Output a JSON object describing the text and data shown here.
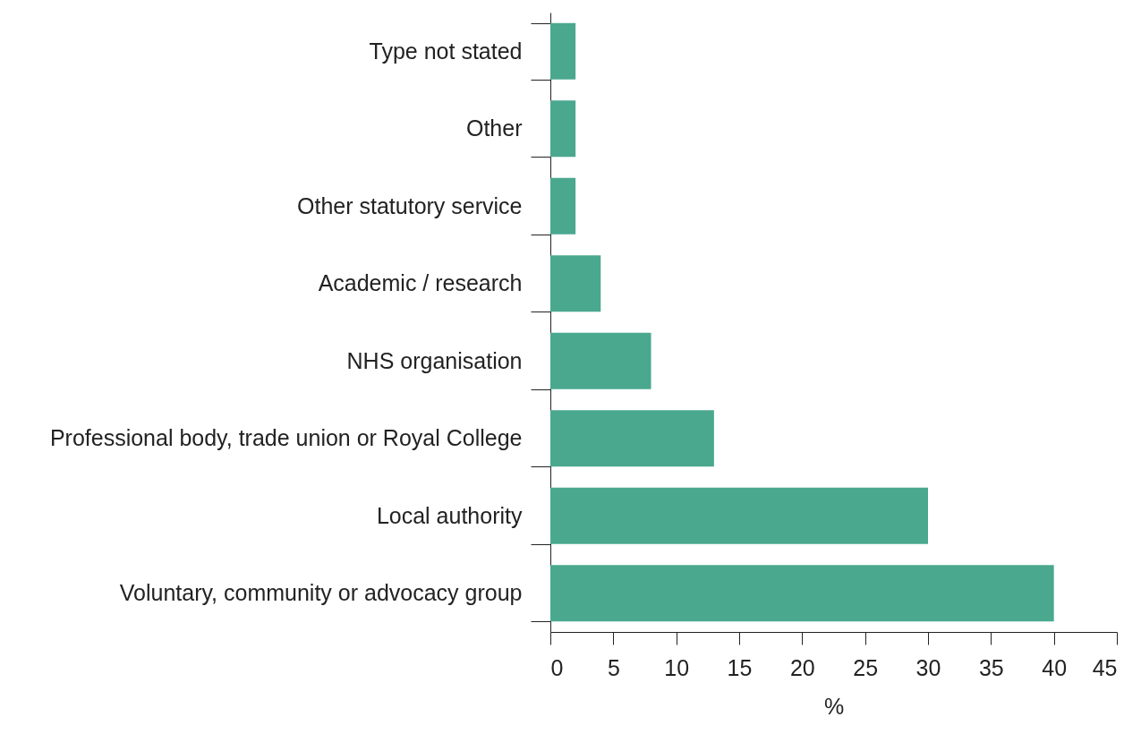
{
  "chart_data": {
    "type": "bar",
    "orientation": "horizontal",
    "xlabel": "%",
    "categories": [
      "Type not stated",
      "Other",
      "Other statutory service",
      "Academic / research",
      "NHS organisation",
      "Professional body, trade union or Royal College",
      "Local authority",
      "Voluntary, community or advocacy group"
    ],
    "values": [
      2,
      2,
      2,
      4,
      8,
      13,
      30,
      40
    ],
    "color": "#4aa88f",
    "xlim": [
      0,
      45
    ],
    "xticks": [
      0,
      5,
      10,
      15,
      20,
      25,
      30,
      35,
      40,
      45
    ],
    "grid": false
  }
}
